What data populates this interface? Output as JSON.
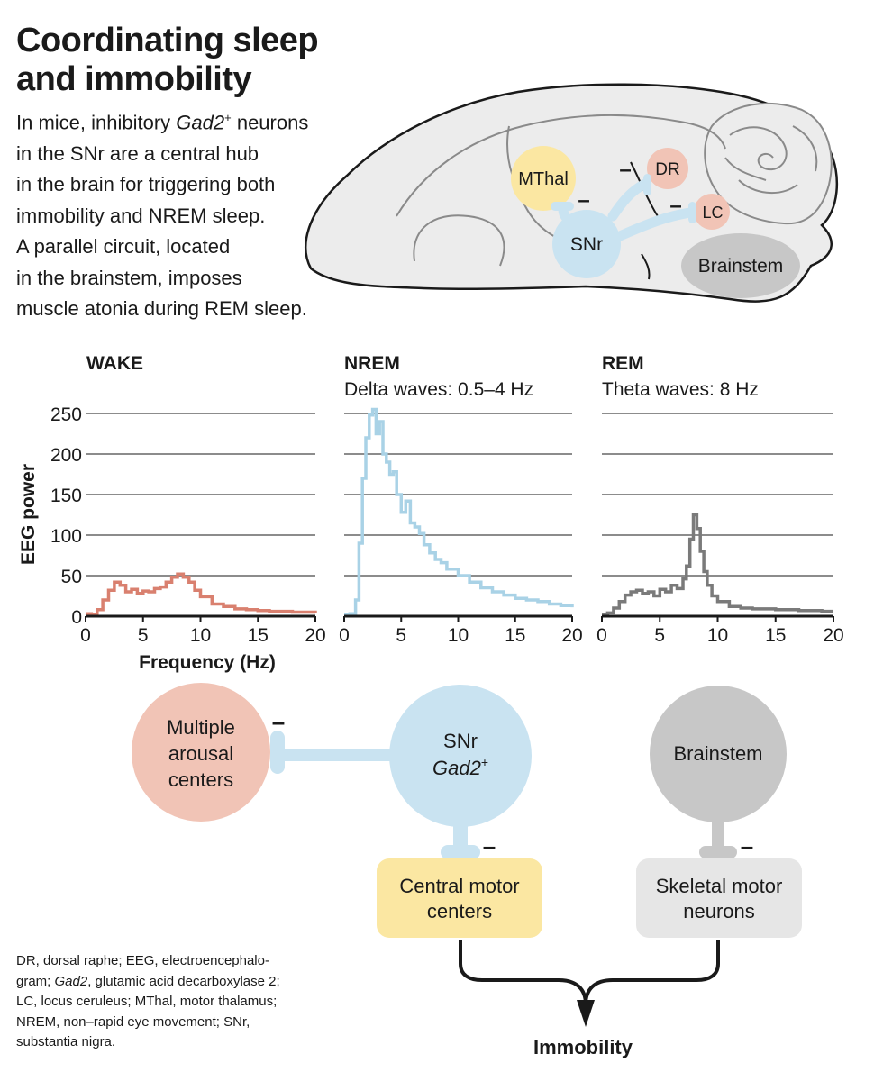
{
  "title": [
    "Coordinating sleep",
    "and immobility"
  ],
  "intro": {
    "l1a": "In mice, inhibitory ",
    "l1gene": "Gad2",
    "l1sup": "+",
    "l1b": " neurons",
    "l2": "in the SNr are a central hub",
    "l3": "in the brain for triggering both",
    "l4": "immobility and NREM sleep.",
    "l5": "A parallel circuit, located",
    "l6": "in the brainstem, imposes",
    "l7": "muscle atonia during REM sleep."
  },
  "brain": {
    "mthal": "MThal",
    "snr": "SNr",
    "dr": "DR",
    "lc": "LC",
    "brainstem": "Brainstem",
    "minus": "–"
  },
  "colors": {
    "wake": "#d9806f",
    "nrem": "#a9d2e6",
    "rem": "#7a7a7a",
    "snr_fill": "#c9e3f1",
    "mthal_fill": "#fbe7a2",
    "dr_fill": "#f1c4b6",
    "brainstem_fill": "#c7c7c7",
    "brain_fill": "#ececec"
  },
  "chart_data": [
    {
      "type": "line",
      "title": "WAKE",
      "subtitle": "",
      "series": [
        {
          "name": "WAKE",
          "color": "#d9806f",
          "x": [
            0,
            0.5,
            1,
            1.5,
            2,
            2.5,
            3,
            3.5,
            4,
            4.5,
            5,
            5.5,
            6,
            6.5,
            7,
            7.5,
            8,
            8.5,
            9,
            9.5,
            10,
            11,
            12,
            13,
            14,
            15,
            16,
            17,
            18,
            19,
            20
          ],
          "values": [
            3,
            2,
            8,
            20,
            32,
            42,
            38,
            30,
            33,
            28,
            31,
            30,
            34,
            36,
            42,
            48,
            52,
            48,
            42,
            32,
            24,
            15,
            12,
            9,
            8,
            7,
            6,
            6,
            5,
            5,
            4
          ]
        }
      ],
      "xlabel": "Frequency (Hz)",
      "ylabel": "EEG power",
      "xticks": [
        "0",
        "5",
        "10",
        "15",
        "20"
      ],
      "yticks": [
        "0",
        "50",
        "100",
        "150",
        "200",
        "250"
      ],
      "xlim": [
        0,
        20
      ],
      "ylim": [
        0,
        250
      ]
    },
    {
      "type": "line",
      "title": "NREM",
      "subtitle": "Delta waves: 0.5–4 Hz",
      "series": [
        {
          "name": "NREM",
          "color": "#a9d2e6",
          "x": [
            0,
            0.5,
            1,
            1.3,
            1.6,
            1.9,
            2.2,
            2.5,
            2.8,
            3.1,
            3.4,
            3.7,
            4,
            4.3,
            4.6,
            5,
            5.4,
            5.8,
            6.2,
            6.6,
            7,
            7.5,
            8,
            8.5,
            9,
            10,
            11,
            12,
            13,
            14,
            15,
            16,
            17,
            18,
            19,
            20
          ],
          "values": [
            2,
            3,
            20,
            90,
            170,
            220,
            248,
            255,
            225,
            240,
            200,
            190,
            175,
            178,
            150,
            128,
            142,
            115,
            110,
            102,
            88,
            78,
            70,
            66,
            58,
            50,
            42,
            35,
            30,
            26,
            22,
            20,
            18,
            15,
            13,
            11
          ]
        }
      ],
      "xlabel": "",
      "ylabel": "",
      "xticks": [
        "0",
        "5",
        "10",
        "15",
        "20"
      ],
      "yticks": [],
      "xlim": [
        0,
        20
      ],
      "ylim": [
        0,
        250
      ]
    },
    {
      "type": "line",
      "title": "REM",
      "subtitle": "Theta waves: 8 Hz",
      "series": [
        {
          "name": "REM",
          "color": "#7a7a7a",
          "x": [
            0,
            0.5,
            1,
            1.5,
            2,
            2.5,
            3,
            3.5,
            4,
            4.5,
            5,
            5.5,
            6,
            6.5,
            7,
            7.3,
            7.6,
            7.9,
            8.2,
            8.5,
            8.8,
            9.1,
            9.5,
            10,
            11,
            12,
            13,
            14,
            15,
            16,
            17,
            18,
            19,
            20
          ],
          "values": [
            2,
            4,
            10,
            18,
            26,
            30,
            32,
            28,
            30,
            25,
            33,
            30,
            38,
            34,
            46,
            62,
            95,
            125,
            108,
            80,
            55,
            38,
            25,
            18,
            12,
            10,
            9,
            9,
            8,
            8,
            7,
            7,
            6,
            6
          ]
        }
      ],
      "xlabel": "",
      "ylabel": "",
      "xticks": [
        "0",
        "5",
        "10",
        "15",
        "20"
      ],
      "yticks": [],
      "xlim": [
        0,
        20
      ],
      "ylim": [
        0,
        250
      ]
    }
  ],
  "circuit": {
    "arousal": [
      "Multiple",
      "arousal",
      "centers"
    ],
    "snr": "SNr",
    "snr_gene": "Gad2",
    "snr_sup": "+",
    "brainstem": "Brainstem",
    "central": [
      "Central motor",
      "centers"
    ],
    "skeletal": [
      "Skeletal motor",
      "neurons"
    ],
    "immobility": "Immobility",
    "minus": "–"
  },
  "footnote": {
    "l1": "DR, dorsal raphe; EEG, electroencephalo-",
    "l2gene": "Gad2",
    "l2b": ", glutamic acid decarboxylase 2;",
    "l2a": "gram; ",
    "l3": "LC, locus ceruleus; MThal, motor thalamus;",
    "l4": "NREM,  non–rapid eye movement; SNr,",
    "l5": "substantia nigra."
  }
}
